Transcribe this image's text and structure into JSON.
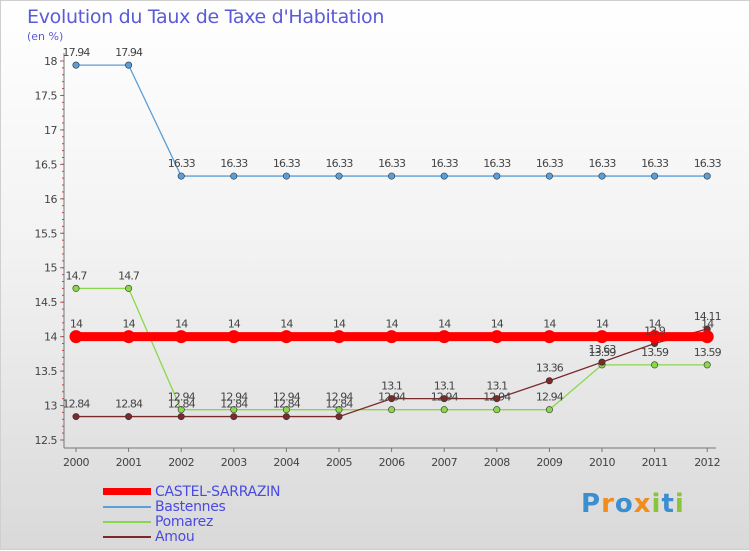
{
  "chart_data": {
    "type": "line",
    "title": "Evolution du Taux de Taxe d'Habitation",
    "subtitle": "(en %)",
    "xlabel": "",
    "ylabel": "",
    "categories": [
      "2000",
      "2001",
      "2002",
      "2003",
      "2004",
      "2005",
      "2006",
      "2007",
      "2008",
      "2009",
      "2010",
      "2011",
      "2012"
    ],
    "ylim": [
      12.5,
      18
    ],
    "yticks": [
      "12.5",
      "13",
      "13.5",
      "14",
      "14.5",
      "15",
      "15.5",
      "16",
      "16.5",
      "17",
      "17.5",
      "18"
    ],
    "series": [
      {
        "name": "CASTEL-SARRAZIN",
        "color": "#ff0000",
        "values": [
          14,
          14,
          14,
          14,
          14,
          14,
          14,
          14,
          14,
          14,
          14,
          14,
          14
        ],
        "labels": [
          "14",
          "14",
          "14",
          "14",
          "14",
          "14",
          "14",
          "14",
          "14",
          "14",
          "14",
          "14",
          "14"
        ]
      },
      {
        "name": "Bastennes",
        "color": "#5a9fd8",
        "values": [
          17.94,
          17.94,
          16.33,
          16.33,
          16.33,
          16.33,
          16.33,
          16.33,
          16.33,
          16.33,
          16.33,
          16.33,
          16.33
        ],
        "labels": [
          "17.94",
          "17.94",
          "16.33",
          "16.33",
          "16.33",
          "16.33",
          "16.33",
          "16.33",
          "16.33",
          "16.33",
          "16.33",
          "16.33",
          "16.33"
        ]
      },
      {
        "name": "Pomarez",
        "color": "#8ad84a",
        "values": [
          14.7,
          14.7,
          12.94,
          12.94,
          12.94,
          12.94,
          12.94,
          12.94,
          12.94,
          12.94,
          13.59,
          13.59,
          13.59
        ],
        "labels": [
          "14.7",
          "14.7",
          "12.94",
          "12.94",
          "12.94",
          "12.94",
          "12.94",
          "12.94",
          "12.94",
          "12.94",
          "13.59",
          "13.59",
          "13.59"
        ]
      },
      {
        "name": "Amou",
        "color": "#7a2a2a",
        "values": [
          12.84,
          12.84,
          12.84,
          12.84,
          12.84,
          12.84,
          13.1,
          13.1,
          13.1,
          13.36,
          13.63,
          13.9,
          14.11
        ],
        "labels": [
          "12.84",
          "12.84",
          "12.84",
          "12.84",
          "12.84",
          "12.84",
          "13.1",
          "13.1",
          "13.1",
          "13.36",
          "13.63",
          "13.9",
          "14.11"
        ]
      }
    ]
  },
  "logo": {
    "letters": [
      "P",
      "r",
      "o",
      "x",
      "i",
      "t",
      "i"
    ]
  }
}
